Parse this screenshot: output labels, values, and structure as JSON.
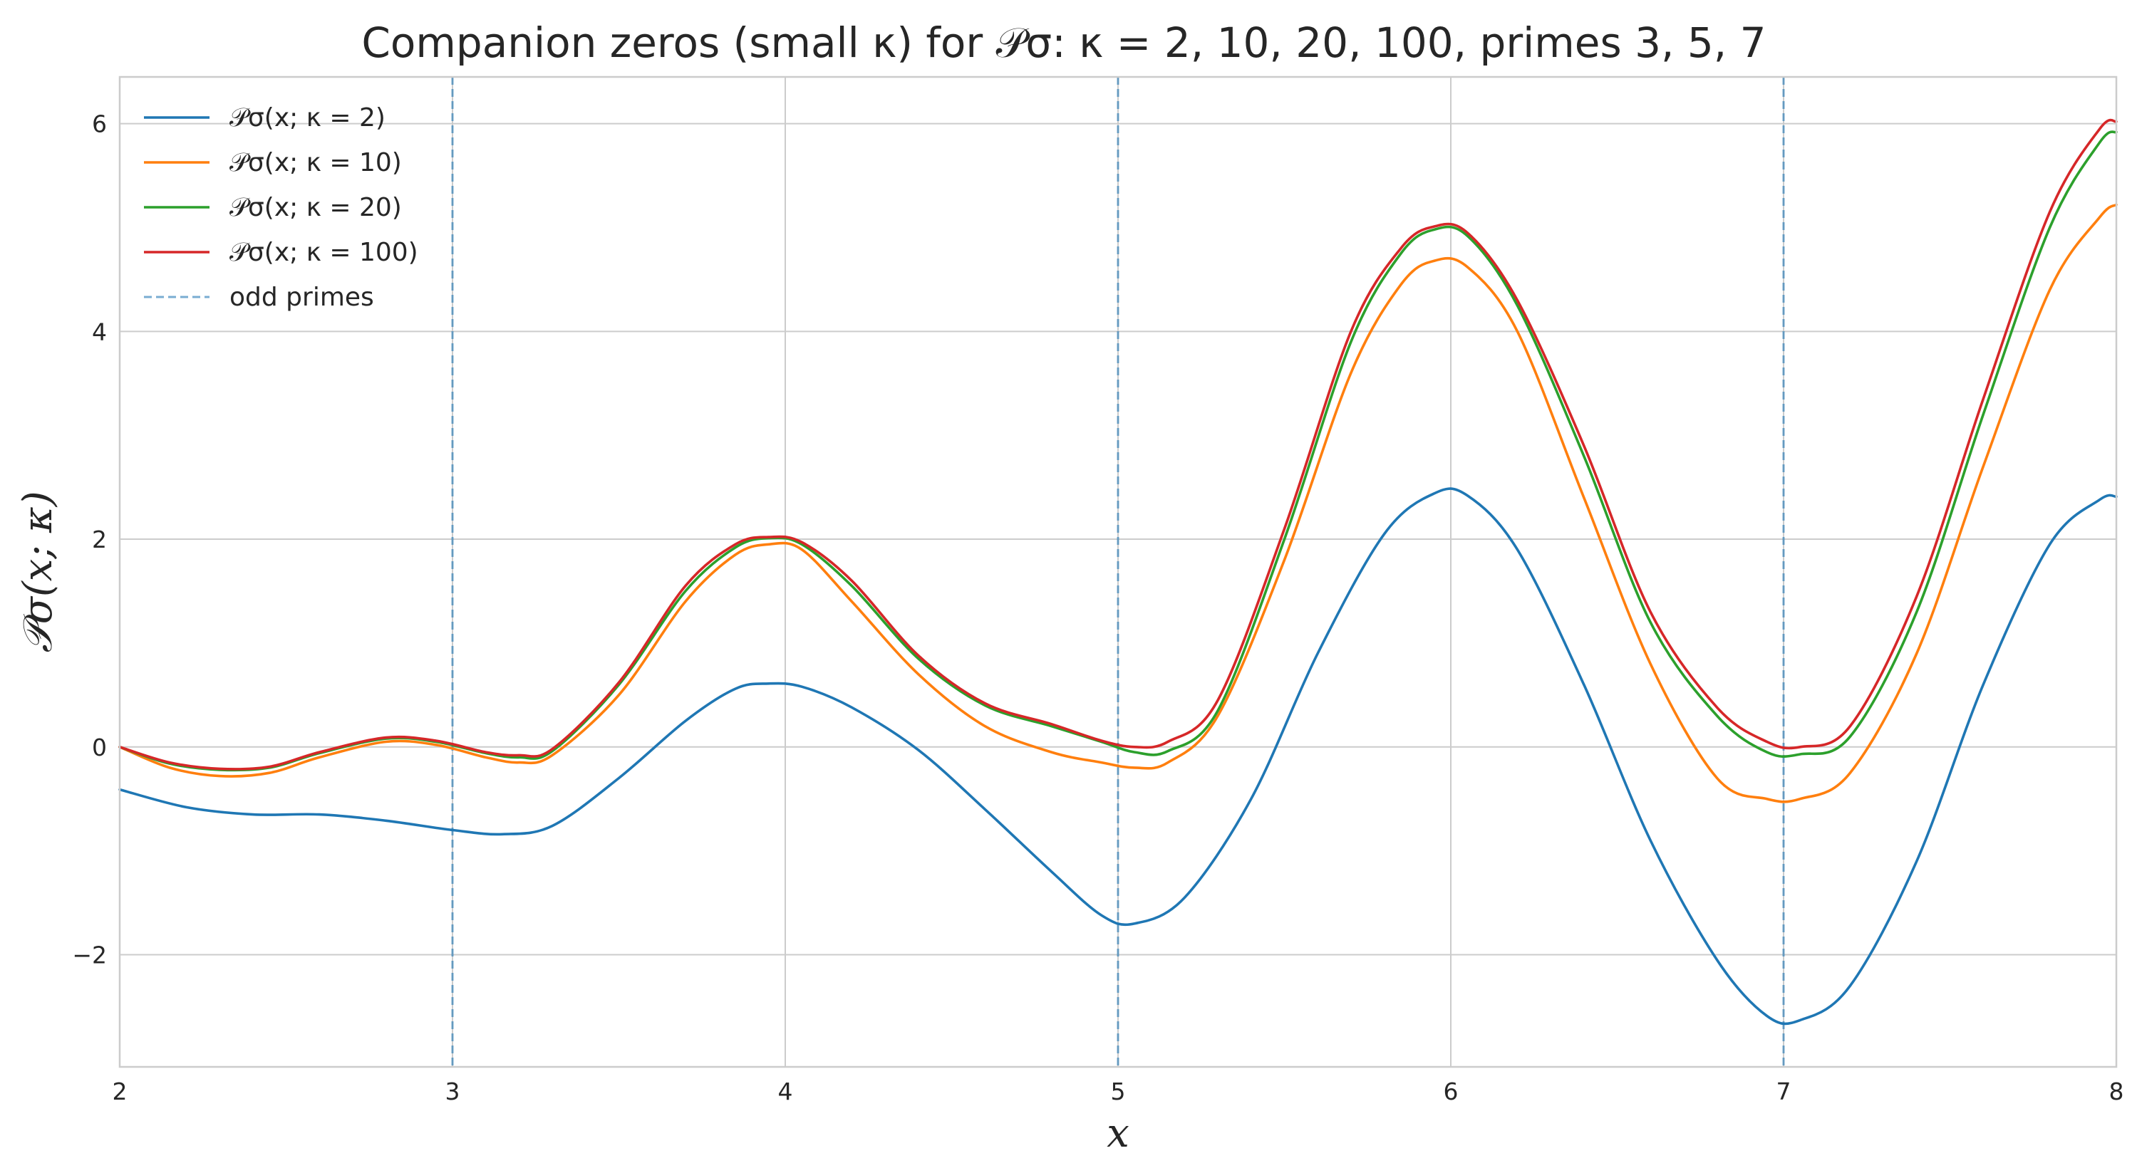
{
  "chart_data": {
    "type": "line",
    "title": "Companion zeros (small κ) for 𝒫σ: κ = 2, 10, 20, 100, primes 3, 5, 7",
    "xlabel": "x",
    "ylabel": "𝒫σ(x; κ)",
    "xlim": [
      2,
      8
    ],
    "ylim": [
      -3.08,
      6.45
    ],
    "xticks": [
      2,
      3,
      4,
      5,
      6,
      7,
      8
    ],
    "xtick_labels": [
      "2",
      "3",
      "4",
      "5",
      "6",
      "7",
      "8"
    ],
    "yticks": [
      -2,
      0,
      2,
      4,
      6
    ],
    "ytick_labels": [
      "−2",
      "0",
      "2",
      "4",
      "6"
    ],
    "grid": true,
    "legend_position": "top-left",
    "series": [
      {
        "name": "𝒫σ(x; κ = 2)",
        "color": "#1f77b4",
        "points": [
          [
            2.0,
            -0.41
          ],
          [
            2.2,
            -0.58
          ],
          [
            2.4,
            -0.65
          ],
          [
            2.6,
            -0.65
          ],
          [
            2.8,
            -0.71
          ],
          [
            3.0,
            -0.8
          ],
          [
            3.15,
            -0.84
          ],
          [
            3.3,
            -0.76
          ],
          [
            3.5,
            -0.3
          ],
          [
            3.7,
            0.25
          ],
          [
            3.85,
            0.56
          ],
          [
            3.95,
            0.61
          ],
          [
            4.05,
            0.58
          ],
          [
            4.2,
            0.38
          ],
          [
            4.4,
            -0.03
          ],
          [
            4.6,
            -0.6
          ],
          [
            4.8,
            -1.2
          ],
          [
            4.95,
            -1.62
          ],
          [
            5.05,
            -1.7
          ],
          [
            5.2,
            -1.45
          ],
          [
            5.4,
            -0.5
          ],
          [
            5.6,
            0.9
          ],
          [
            5.8,
            2.05
          ],
          [
            5.95,
            2.44
          ],
          [
            6.05,
            2.42
          ],
          [
            6.2,
            1.9
          ],
          [
            6.4,
            0.6
          ],
          [
            6.6,
            -0.9
          ],
          [
            6.8,
            -2.05
          ],
          [
            6.95,
            -2.59
          ],
          [
            7.05,
            -2.63
          ],
          [
            7.2,
            -2.3
          ],
          [
            7.4,
            -1.1
          ],
          [
            7.6,
            0.6
          ],
          [
            7.8,
            1.95
          ],
          [
            7.95,
            2.38
          ],
          [
            8.0,
            2.41
          ]
        ]
      },
      {
        "name": "𝒫σ(x; κ = 10)",
        "color": "#ff7f0e",
        "points": [
          [
            2.0,
            0.0
          ],
          [
            2.15,
            -0.2
          ],
          [
            2.3,
            -0.28
          ],
          [
            2.45,
            -0.25
          ],
          [
            2.6,
            -0.1
          ],
          [
            2.8,
            0.05
          ],
          [
            2.95,
            0.02
          ],
          [
            3.1,
            -0.1
          ],
          [
            3.2,
            -0.15
          ],
          [
            3.3,
            -0.08
          ],
          [
            3.5,
            0.5
          ],
          [
            3.7,
            1.4
          ],
          [
            3.85,
            1.85
          ],
          [
            3.95,
            1.95
          ],
          [
            4.05,
            1.9
          ],
          [
            4.2,
            1.4
          ],
          [
            4.4,
            0.7
          ],
          [
            4.6,
            0.2
          ],
          [
            4.8,
            -0.05
          ],
          [
            4.95,
            -0.15
          ],
          [
            5.05,
            -0.2
          ],
          [
            5.15,
            -0.15
          ],
          [
            5.3,
            0.3
          ],
          [
            5.5,
            1.8
          ],
          [
            5.7,
            3.6
          ],
          [
            5.85,
            4.45
          ],
          [
            5.95,
            4.68
          ],
          [
            6.05,
            4.62
          ],
          [
            6.2,
            4.0
          ],
          [
            6.4,
            2.4
          ],
          [
            6.6,
            0.8
          ],
          [
            6.8,
            -0.3
          ],
          [
            6.95,
            -0.5
          ],
          [
            7.05,
            -0.5
          ],
          [
            7.2,
            -0.25
          ],
          [
            7.4,
            0.9
          ],
          [
            7.6,
            2.7
          ],
          [
            7.8,
            4.4
          ],
          [
            7.95,
            5.1
          ],
          [
            8.0,
            5.22
          ]
        ]
      },
      {
        "name": "𝒫σ(x; κ = 20)",
        "color": "#2ca02c",
        "points": [
          [
            2.0,
            0.0
          ],
          [
            2.15,
            -0.16
          ],
          [
            2.3,
            -0.22
          ],
          [
            2.45,
            -0.2
          ],
          [
            2.6,
            -0.06
          ],
          [
            2.8,
            0.08
          ],
          [
            2.95,
            0.05
          ],
          [
            3.1,
            -0.06
          ],
          [
            3.2,
            -0.1
          ],
          [
            3.3,
            -0.04
          ],
          [
            3.5,
            0.6
          ],
          [
            3.7,
            1.5
          ],
          [
            3.85,
            1.92
          ],
          [
            3.95,
            2.01
          ],
          [
            4.05,
            1.95
          ],
          [
            4.2,
            1.55
          ],
          [
            4.4,
            0.85
          ],
          [
            4.6,
            0.4
          ],
          [
            4.8,
            0.2
          ],
          [
            4.95,
            0.05
          ],
          [
            5.05,
            -0.05
          ],
          [
            5.15,
            -0.04
          ],
          [
            5.3,
            0.35
          ],
          [
            5.5,
            2.0
          ],
          [
            5.7,
            3.9
          ],
          [
            5.85,
            4.75
          ],
          [
            5.95,
            4.98
          ],
          [
            6.05,
            4.92
          ],
          [
            6.2,
            4.25
          ],
          [
            6.4,
            2.8
          ],
          [
            6.6,
            1.2
          ],
          [
            6.8,
            0.3
          ],
          [
            6.95,
            -0.05
          ],
          [
            7.05,
            -0.07
          ],
          [
            7.2,
            0.1
          ],
          [
            7.4,
            1.3
          ],
          [
            7.6,
            3.2
          ],
          [
            7.8,
            5.0
          ],
          [
            7.95,
            5.82
          ],
          [
            8.0,
            5.92
          ]
        ]
      },
      {
        "name": "𝒫σ(x; κ = 100)",
        "color": "#d62728",
        "points": [
          [
            2.0,
            0.0
          ],
          [
            2.15,
            -0.15
          ],
          [
            2.3,
            -0.21
          ],
          [
            2.45,
            -0.19
          ],
          [
            2.6,
            -0.05
          ],
          [
            2.8,
            0.09
          ],
          [
            2.95,
            0.06
          ],
          [
            3.1,
            -0.05
          ],
          [
            3.2,
            -0.08
          ],
          [
            3.3,
            -0.02
          ],
          [
            3.5,
            0.62
          ],
          [
            3.7,
            1.55
          ],
          [
            3.85,
            1.95
          ],
          [
            3.95,
            2.02
          ],
          [
            4.05,
            1.97
          ],
          [
            4.2,
            1.6
          ],
          [
            4.4,
            0.88
          ],
          [
            4.6,
            0.42
          ],
          [
            4.8,
            0.22
          ],
          [
            4.95,
            0.06
          ],
          [
            5.05,
            0.0
          ],
          [
            5.15,
            0.05
          ],
          [
            5.3,
            0.45
          ],
          [
            5.5,
            2.1
          ],
          [
            5.7,
            4.0
          ],
          [
            5.85,
            4.8
          ],
          [
            5.95,
            5.01
          ],
          [
            6.05,
            4.95
          ],
          [
            6.2,
            4.3
          ],
          [
            6.4,
            2.9
          ],
          [
            6.6,
            1.3
          ],
          [
            6.8,
            0.38
          ],
          [
            6.95,
            0.05
          ],
          [
            7.05,
            0.0
          ],
          [
            7.2,
            0.2
          ],
          [
            7.4,
            1.45
          ],
          [
            7.6,
            3.35
          ],
          [
            7.8,
            5.15
          ],
          [
            7.95,
            5.95
          ],
          [
            8.0,
            6.02
          ]
        ]
      }
    ],
    "vlines": {
      "name": "odd primes",
      "color": "#1f77b4",
      "style": "dashed",
      "x": [
        3,
        5,
        7
      ]
    }
  }
}
